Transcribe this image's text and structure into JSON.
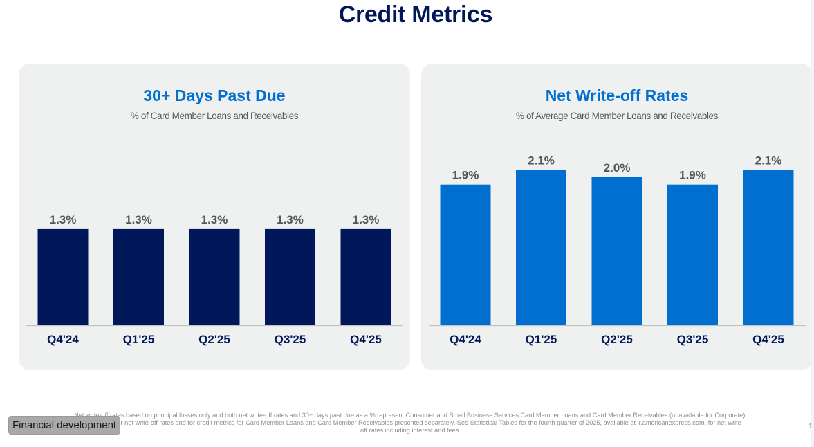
{
  "page": {
    "title": "Credit Metrics"
  },
  "chart_data": [
    {
      "type": "bar",
      "title": "30+ Days Past Due",
      "subtitle": "% of Card Member Loans and Receivables",
      "categories": [
        "Q4'24",
        "Q1'25",
        "Q2'25",
        "Q3'25",
        "Q4'25"
      ],
      "values": [
        1.3,
        1.3,
        1.3,
        1.3,
        1.3
      ],
      "value_labels": [
        "1.3%",
        "1.3%",
        "1.3%",
        "1.3%",
        "1.3%"
      ],
      "xlabel": "",
      "ylabel": "",
      "ylim": [
        0,
        2.1
      ],
      "grid": false,
      "bar_color": "#00175A"
    },
    {
      "type": "bar",
      "title": "Net Write-off Rates",
      "subtitle": "% of Average Card Member Loans and Receivables",
      "categories": [
        "Q4'24",
        "Q1'25",
        "Q2'25",
        "Q3'25",
        "Q4'25"
      ],
      "values": [
        1.9,
        2.1,
        2.0,
        1.9,
        2.1
      ],
      "value_labels": [
        "1.9%",
        "2.1%",
        "2.0%",
        "1.9%",
        "2.1%"
      ],
      "xlabel": "",
      "ylabel": "",
      "ylim": [
        0,
        2.1
      ],
      "grid": false,
      "bar_color": "#006FCF"
    }
  ],
  "footnote": {
    "lines": [
      "Net write-off rates based on principal losses only and both net write-off rates and 30+ days past due as a % represent Consumer and Small Business Services Card Member Loans and Card Member Receivables (unavailable for Corporate).",
      "See Annex 1 for net write-off rates and for credit metrics for Card Member Loans and Card Member Receivables presented separately. See Statistical Tables for the fourth quarter of 2025, available at ir.americanexpress.com, for net write-",
      "off rates including interest and fees."
    ]
  },
  "page_number": "1",
  "badge": {
    "label": "Financial development"
  },
  "colors": {
    "title": "#00175A",
    "panel_title": "#006FCF",
    "panel_bg": "#EFF0F0"
  }
}
